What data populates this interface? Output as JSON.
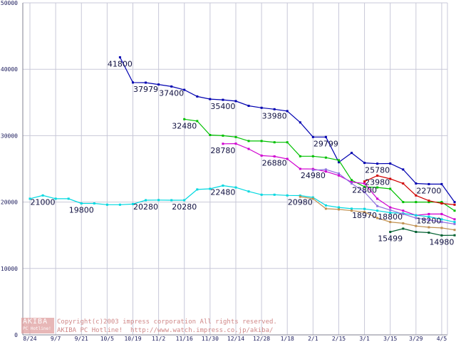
{
  "chart_data": {
    "type": "line",
    "x_categories": [
      "8/24",
      "9/7",
      "9/21",
      "10/5",
      "10/19",
      "11/2",
      "11/16",
      "11/30",
      "12/14",
      "12/28",
      "1/18",
      "2/1",
      "2/15",
      "3/1",
      "3/15",
      "3/29",
      "4/5"
    ],
    "yticks": [
      "0",
      "10000",
      "20000",
      "30000",
      "40000",
      "50000"
    ],
    "ylim": [
      0,
      50000
    ],
    "grid": true,
    "series": [
      {
        "color": "#0000b0",
        "values": [
          [
            3.5,
            41800
          ],
          [
            4,
            38000
          ],
          [
            4.5,
            37979
          ],
          [
            5,
            37700
          ],
          [
            5.5,
            37400
          ],
          [
            6,
            36900
          ],
          [
            6.5,
            35900
          ],
          [
            7,
            35500
          ],
          [
            7.5,
            35400
          ],
          [
            8,
            35200
          ],
          [
            8.5,
            34500
          ],
          [
            9,
            34200
          ],
          [
            9.5,
            33980
          ],
          [
            10,
            33700
          ],
          [
            10.5,
            32000
          ],
          [
            11,
            29800
          ],
          [
            11.5,
            29799
          ],
          [
            12,
            26000
          ],
          [
            12.5,
            27400
          ],
          [
            13,
            25900
          ],
          [
            13.5,
            25780
          ],
          [
            14,
            25800
          ],
          [
            14.5,
            24900
          ],
          [
            15,
            22800
          ],
          [
            15.5,
            22700
          ],
          [
            16,
            22700
          ],
          [
            16.5,
            20000
          ]
        ]
      },
      {
        "color": "#00c000",
        "values": [
          [
            6,
            32480
          ],
          [
            6.5,
            32200
          ],
          [
            7,
            30100
          ],
          [
            7.5,
            30000
          ],
          [
            8,
            29800
          ],
          [
            8.5,
            29200
          ],
          [
            9,
            29200
          ],
          [
            9.5,
            29000
          ],
          [
            10,
            29000
          ],
          [
            10.5,
            26900
          ],
          [
            11,
            26900
          ],
          [
            11.5,
            26700
          ],
          [
            12,
            26300
          ],
          [
            12.5,
            23300
          ],
          [
            13,
            22300
          ],
          [
            13.5,
            22200
          ],
          [
            14,
            22000
          ],
          [
            14.5,
            20000
          ],
          [
            15,
            20000
          ],
          [
            15.5,
            20000
          ],
          [
            16,
            20000
          ],
          [
            16.5,
            18700
          ]
        ]
      },
      {
        "color": "#d000d0",
        "values": [
          [
            7.5,
            28780
          ],
          [
            8,
            28800
          ],
          [
            8.5,
            28000
          ],
          [
            9,
            27000
          ],
          [
            9.5,
            26880
          ],
          [
            10,
            26500
          ],
          [
            10.5,
            25000
          ],
          [
            11,
            24980
          ],
          [
            11.5,
            24600
          ],
          [
            12,
            24000
          ],
          [
            12.5,
            23000
          ],
          [
            13,
            22800
          ],
          [
            13.5,
            20500
          ],
          [
            14,
            19200
          ],
          [
            14.5,
            18700
          ],
          [
            15,
            18000
          ],
          [
            15.5,
            18200
          ],
          [
            16,
            18200
          ],
          [
            16.5,
            17400
          ]
        ]
      },
      {
        "color": "#00d8e0",
        "values": [
          [
            0,
            20500
          ],
          [
            0.5,
            21000
          ],
          [
            1,
            20500
          ],
          [
            1.5,
            20500
          ],
          [
            2,
            19800
          ],
          [
            2.5,
            19800
          ],
          [
            3,
            19600
          ],
          [
            3.5,
            19600
          ],
          [
            4,
            19700
          ],
          [
            4.5,
            20280
          ],
          [
            5,
            20300
          ],
          [
            5.5,
            20280
          ],
          [
            6,
            20280
          ],
          [
            6.5,
            21900
          ],
          [
            7,
            22000
          ],
          [
            7.5,
            22480
          ],
          [
            8,
            22200
          ],
          [
            8.5,
            21600
          ],
          [
            9,
            21100
          ],
          [
            9.5,
            21100
          ],
          [
            10,
            21000
          ],
          [
            10.5,
            20980
          ],
          [
            11,
            20700
          ],
          [
            11.5,
            19500
          ],
          [
            12,
            19200
          ],
          [
            12.5,
            19000
          ],
          [
            13,
            18970
          ],
          [
            13.5,
            18700
          ],
          [
            14,
            18400
          ],
          [
            14.5,
            18300
          ],
          [
            15,
            18000
          ],
          [
            15.5,
            17800
          ],
          [
            16,
            17400
          ],
          [
            16.5,
            17000
          ]
        ]
      },
      {
        "color": "#c09050",
        "values": [
          [
            10.5,
            20800
          ],
          [
            11,
            20500
          ],
          [
            11.5,
            19000
          ],
          [
            12,
            18900
          ],
          [
            12.5,
            18700
          ],
          [
            13,
            18500
          ],
          [
            13.5,
            17600
          ],
          [
            14,
            17000
          ],
          [
            14.5,
            16800
          ],
          [
            15,
            16400
          ],
          [
            15.5,
            16200
          ],
          [
            16,
            16100
          ],
          [
            16.5,
            15800
          ]
        ]
      },
      {
        "color": "#9070e0",
        "values": [
          [
            11,
            24800
          ],
          [
            11.5,
            24900
          ],
          [
            12,
            24300
          ],
          [
            12.5,
            22800
          ],
          [
            13,
            21500
          ],
          [
            13.5,
            19400
          ],
          [
            14,
            18800
          ],
          [
            14.5,
            18200
          ],
          [
            15,
            17600
          ],
          [
            15.5,
            17300
          ],
          [
            16,
            17000
          ],
          [
            16.5,
            16700
          ]
        ]
      },
      {
        "color": "#d00000",
        "values": [
          [
            13,
            23100
          ],
          [
            13.5,
            23980
          ],
          [
            14,
            23500
          ],
          [
            14.5,
            22800
          ],
          [
            15,
            21000
          ],
          [
            15.5,
            20200
          ],
          [
            16,
            19800
          ],
          [
            16.5,
            19600
          ]
        ]
      },
      {
        "color": "#006030",
        "values": [
          [
            14,
            15499
          ],
          [
            14.5,
            16000
          ],
          [
            15,
            15500
          ],
          [
            15.5,
            15400
          ],
          [
            16,
            14980
          ],
          [
            16.5,
            15000
          ]
        ]
      }
    ],
    "labels": [
      {
        "text": "41800",
        "x": 3.5,
        "y": 41800
      },
      {
        "text": "37979",
        "x": 4.5,
        "y": 37979
      },
      {
        "text": "37400",
        "x": 5.5,
        "y": 37400
      },
      {
        "text": "35400",
        "x": 7.5,
        "y": 35400
      },
      {
        "text": "33980",
        "x": 9.5,
        "y": 33980
      },
      {
        "text": "32480",
        "x": 6,
        "y": 32480
      },
      {
        "text": "29799",
        "x": 11.5,
        "y": 29799
      },
      {
        "text": "28780",
        "x": 7.5,
        "y": 28780
      },
      {
        "text": "26880",
        "x": 9.5,
        "y": 26880
      },
      {
        "text": "25780",
        "x": 13.5,
        "y": 25780
      },
      {
        "text": "24980",
        "x": 11,
        "y": 24980
      },
      {
        "text": "23980",
        "x": 13.5,
        "y": 23980
      },
      {
        "text": "22800",
        "x": 13,
        "y": 22800
      },
      {
        "text": "22700",
        "x": 15.5,
        "y": 22700
      },
      {
        "text": "22480",
        "x": 7.5,
        "y": 22480
      },
      {
        "text": "21000",
        "x": 0.5,
        "y": 21000
      },
      {
        "text": "20980",
        "x": 10.5,
        "y": 20980
      },
      {
        "text": "20280",
        "x": 4.5,
        "y": 20280
      },
      {
        "text": "20280",
        "x": 6,
        "y": 20280
      },
      {
        "text": "19800",
        "x": 2,
        "y": 19800
      },
      {
        "text": "18970",
        "x": 13,
        "y": 18970
      },
      {
        "text": "18800",
        "x": 14,
        "y": 18800
      },
      {
        "text": "18200",
        "x": 15.5,
        "y": 18200
      },
      {
        "text": "15499",
        "x": 14,
        "y": 15499
      },
      {
        "text": "14980",
        "x": 16,
        "y": 14980
      }
    ]
  },
  "watermark": {
    "logo_top": "AKIBA",
    "logo_sub": "PC Hotline!",
    "line1": "Copyright(c)2003 impress corporation All rights reserved.",
    "line2": "AKIBA PC Hotline!  http://www.watch.impress.co.jp/akiba/"
  }
}
